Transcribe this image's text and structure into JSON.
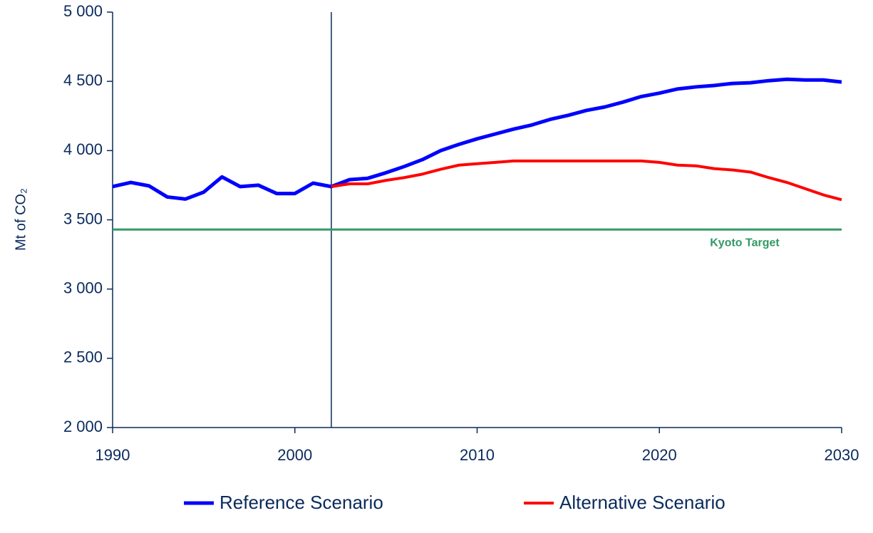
{
  "chart_data": {
    "type": "line",
    "y_label": "Mt of CO₂",
    "x": [
      1990,
      1991,
      1992,
      1993,
      1994,
      1995,
      1996,
      1997,
      1998,
      1999,
      2000,
      2001,
      2002,
      2003,
      2004,
      2005,
      2006,
      2007,
      2008,
      2009,
      2010,
      2011,
      2012,
      2013,
      2014,
      2015,
      2016,
      2017,
      2018,
      2019,
      2020,
      2021,
      2022,
      2023,
      2024,
      2025,
      2026,
      2027,
      2028,
      2029,
      2030
    ],
    "series": [
      {
        "name": "Reference Scenario",
        "color": "#0000ff",
        "values": [
          3740,
          3770,
          3745,
          3665,
          3650,
          3700,
          3810,
          3740,
          3750,
          3690,
          3690,
          3765,
          3740,
          3790,
          3800,
          3840,
          3885,
          3935,
          4000,
          4045,
          4085,
          4120,
          4155,
          4185,
          4225,
          4255,
          4290,
          4315,
          4350,
          4390,
          4415,
          4445,
          4460,
          4470,
          4485,
          4490,
          4505,
          4515,
          4510,
          4510,
          4495
        ]
      },
      {
        "name": "Alternative Scenario",
        "color": "#ff0000",
        "values": [
          null,
          null,
          null,
          null,
          null,
          null,
          null,
          null,
          null,
          null,
          null,
          null,
          3740,
          3760,
          3760,
          3785,
          3805,
          3830,
          3865,
          3895,
          3905,
          3915,
          3925,
          3925,
          3925,
          3925,
          3925,
          3925,
          3925,
          3925,
          3915,
          3895,
          3890,
          3870,
          3860,
          3845,
          3805,
          3770,
          3725,
          3680,
          3645
        ]
      }
    ],
    "xlim": [
      1990,
      2030
    ],
    "xticks": [
      1990,
      2000,
      2010,
      2020,
      2030
    ],
    "ylim": [
      2000,
      5000
    ],
    "yticks": [
      {
        "value": 2000,
        "label": "2 000"
      },
      {
        "value": 2500,
        "label": "2 500"
      },
      {
        "value": 3000,
        "label": "3 000"
      },
      {
        "value": 3500,
        "label": "3 500"
      },
      {
        "value": 4000,
        "label": "4 000"
      },
      {
        "value": 4500,
        "label": "4 500"
      },
      {
        "value": 5000,
        "label": "5 000"
      }
    ],
    "divider_x": 2002,
    "reference_line": {
      "value": 3430,
      "label": "Kyoto Target",
      "color": "#339966"
    }
  }
}
